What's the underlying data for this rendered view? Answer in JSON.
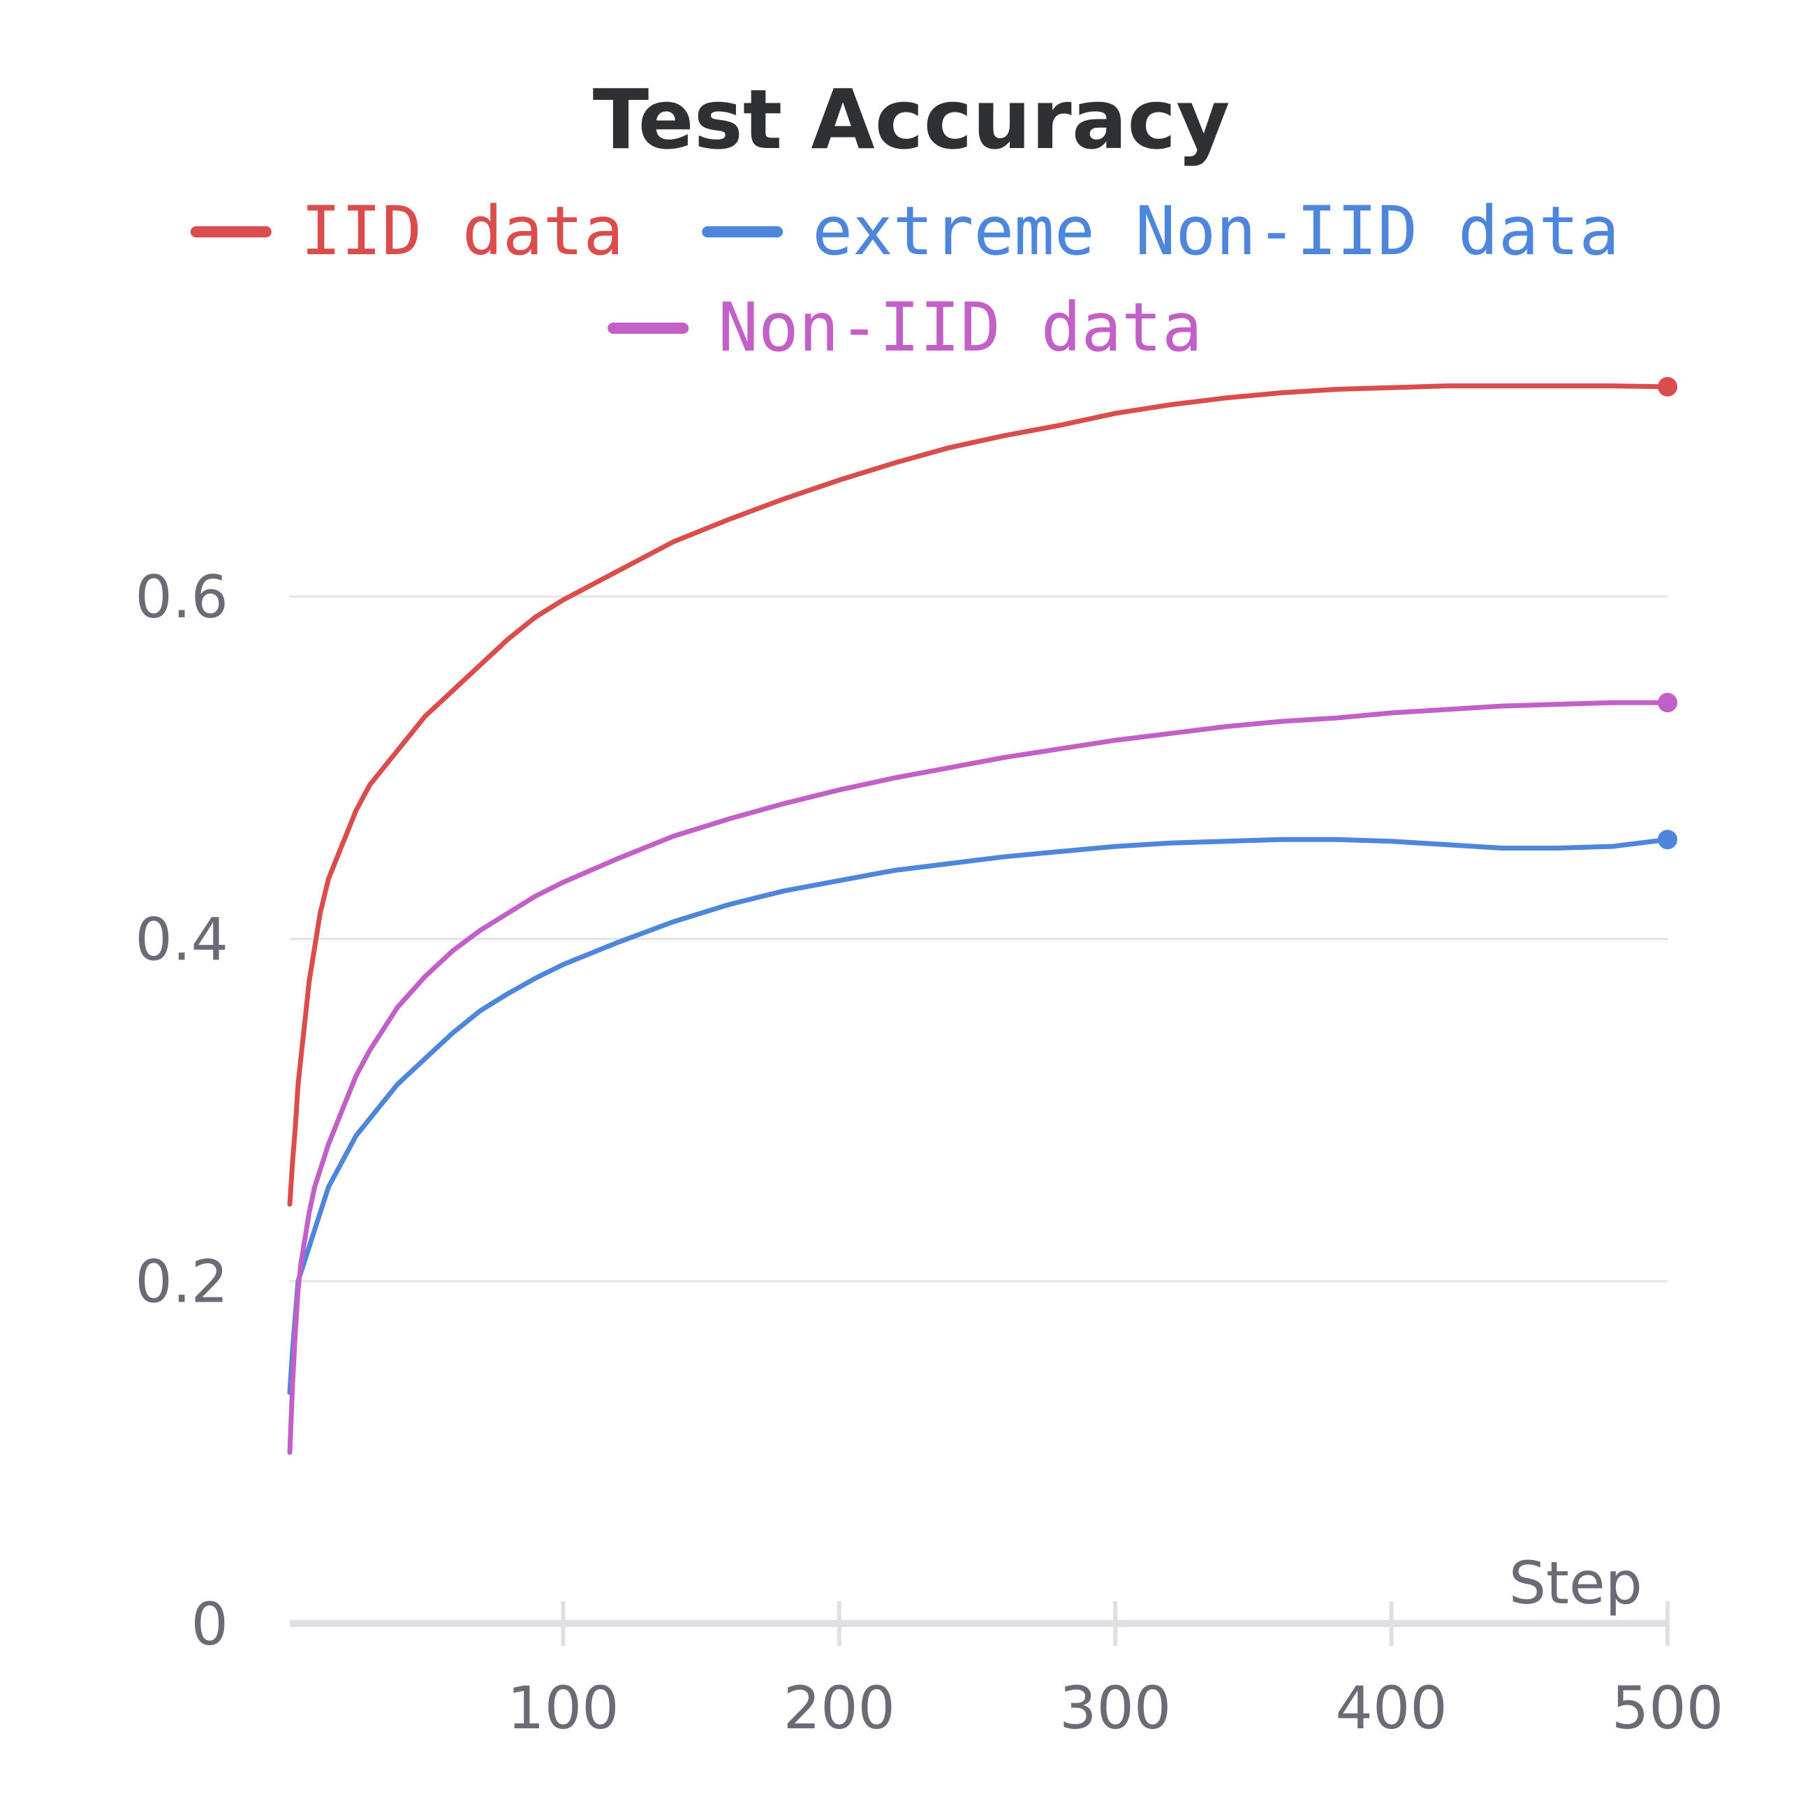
{
  "chart_data": {
    "type": "line",
    "title": "Test Accuracy",
    "xlabel": "Step",
    "ylabel": "",
    "xlim": [
      1,
      500
    ],
    "ylim": [
      0,
      0.72
    ],
    "x_ticks": [
      100,
      200,
      300,
      400,
      500
    ],
    "y_ticks": [
      0,
      0.2,
      0.4,
      0.6
    ],
    "x_tick_labels": [
      "100",
      "200",
      "300",
      "400",
      "500"
    ],
    "y_tick_labels": [
      "0",
      "0.2",
      "0.4",
      "0.6"
    ],
    "grid": "horizontal",
    "legend_position": "top",
    "x": [
      1,
      2,
      3,
      4,
      5,
      6,
      8,
      10,
      12,
      15,
      20,
      25,
      30,
      40,
      50,
      60,
      70,
      80,
      90,
      100,
      120,
      140,
      160,
      180,
      200,
      220,
      240,
      260,
      280,
      300,
      320,
      340,
      360,
      380,
      400,
      420,
      440,
      460,
      480,
      500
    ],
    "series": [
      {
        "name": "IID data",
        "color": "#d94d4d",
        "values": [
          0.245,
          0.27,
          0.29,
          0.315,
          0.33,
          0.345,
          0.375,
          0.395,
          0.415,
          0.435,
          0.455,
          0.475,
          0.49,
          0.51,
          0.53,
          0.545,
          0.56,
          0.575,
          0.588,
          0.598,
          0.615,
          0.632,
          0.645,
          0.657,
          0.668,
          0.678,
          0.687,
          0.694,
          0.7,
          0.707,
          0.712,
          0.716,
          0.719,
          0.721,
          0.722,
          0.723,
          0.723,
          0.723,
          0.723,
          0.7225
        ]
      },
      {
        "name": "extreme Non-IID data",
        "color": "#4e86dc",
        "values": [
          0.135,
          0.16,
          0.18,
          0.2,
          0.205,
          0.21,
          0.22,
          0.23,
          0.24,
          0.255,
          0.27,
          0.285,
          0.295,
          0.315,
          0.33,
          0.345,
          0.358,
          0.368,
          0.377,
          0.385,
          0.398,
          0.41,
          0.42,
          0.428,
          0.434,
          0.44,
          0.444,
          0.448,
          0.451,
          0.454,
          0.456,
          0.457,
          0.458,
          0.458,
          0.457,
          0.455,
          0.453,
          0.453,
          0.454,
          0.458
        ]
      },
      {
        "name": "Non-IID data",
        "color": "#c260c8",
        "values": [
          0.1,
          0.14,
          0.17,
          0.195,
          0.21,
          0.22,
          0.24,
          0.255,
          0.265,
          0.28,
          0.3,
          0.32,
          0.335,
          0.36,
          0.378,
          0.393,
          0.405,
          0.415,
          0.425,
          0.433,
          0.447,
          0.46,
          0.47,
          0.479,
          0.487,
          0.494,
          0.5,
          0.506,
          0.511,
          0.516,
          0.52,
          0.524,
          0.527,
          0.529,
          0.532,
          0.534,
          0.536,
          0.537,
          0.538,
          0.538
        ]
      }
    ]
  }
}
